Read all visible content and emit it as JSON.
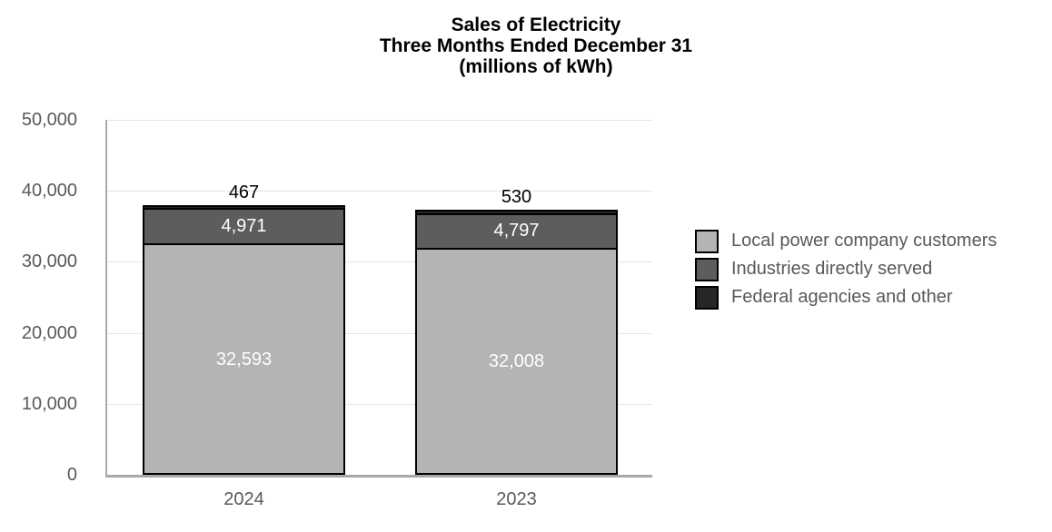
{
  "title": {
    "line1": "Sales of Electricity",
    "line2": "Three Months Ended December 31",
    "line3": "(millions of kWh)"
  },
  "chart_data": {
    "type": "bar",
    "stacked": true,
    "title": "Sales of Electricity — Three Months Ended December 31 (millions of kWh)",
    "categories": [
      "2024",
      "2023"
    ],
    "series": [
      {
        "name": "Local power company customers",
        "color": "#b4b4b4",
        "values": [
          32593,
          32008
        ],
        "labels": [
          "32,593",
          "32,008"
        ],
        "label_position": "inside",
        "label_color": "#ffffff"
      },
      {
        "name": "Industries directly served",
        "color": "#5d5d5d",
        "values": [
          4971,
          4797
        ],
        "labels": [
          "4,971",
          "4,797"
        ],
        "label_position": "inside",
        "label_color": "#ffffff"
      },
      {
        "name": "Federal agencies and other",
        "color": "#262626",
        "values": [
          467,
          530
        ],
        "labels": [
          "467",
          "530"
        ],
        "label_position": "above",
        "label_color": "#000000"
      }
    ],
    "totals": [
      38031,
      37335
    ],
    "ylim": [
      0,
      50000
    ],
    "yticks": [
      0,
      10000,
      20000,
      30000,
      40000,
      50000
    ],
    "ytick_labels": [
      "0",
      "10,000",
      "20,000",
      "30,000",
      "40,000",
      "50,000"
    ],
    "grid": true,
    "legend_position": "right",
    "xlabel": "",
    "ylabel": ""
  },
  "colors": {
    "bar_border": "#000000",
    "axis_line": "#ababab",
    "grid_line": "#e4e4e4",
    "tick_text": "#595959",
    "legend_text": "#595959",
    "background": "#ffffff"
  }
}
